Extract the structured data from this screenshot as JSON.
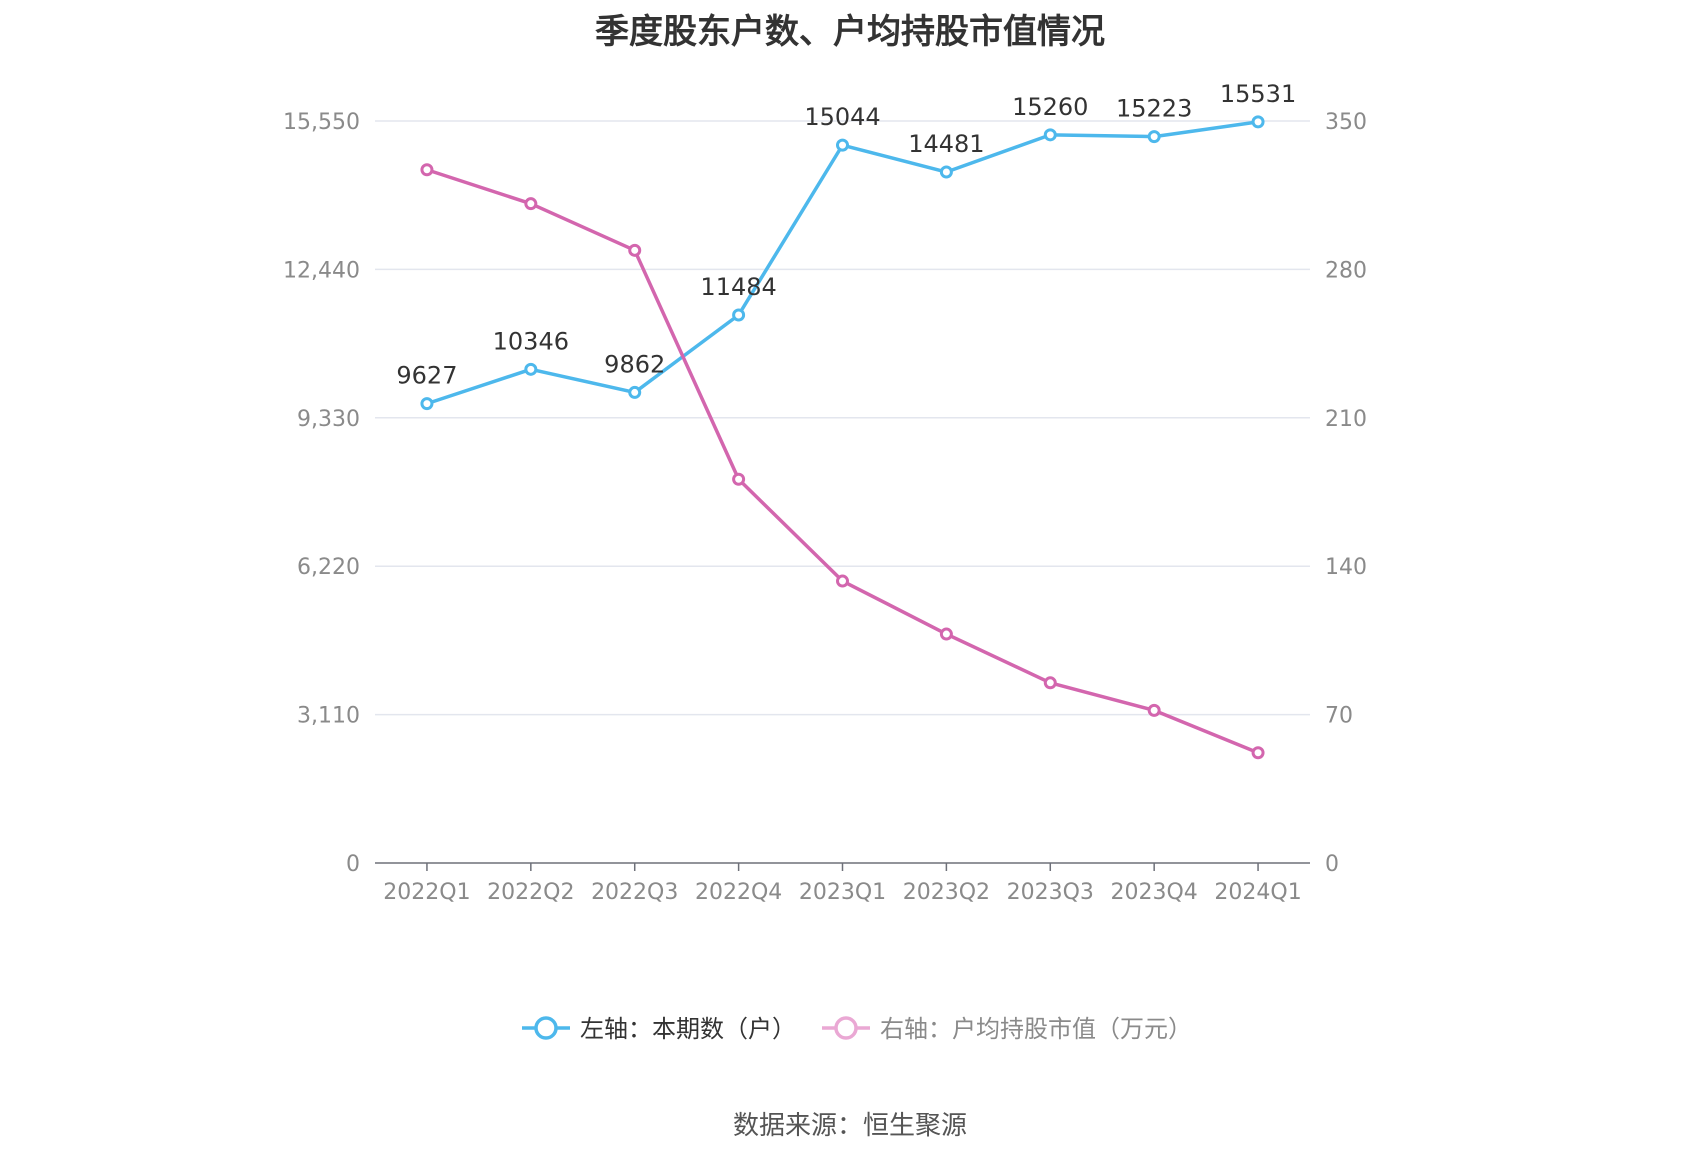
{
  "chart_data": {
    "type": "line",
    "title": "季度股东户数、户均持股市值情况",
    "categories": [
      "2022Q1",
      "2022Q2",
      "2022Q3",
      "2022Q4",
      "2023Q1",
      "2023Q2",
      "2023Q3",
      "2023Q4",
      "2024Q1"
    ],
    "series": [
      {
        "name": "左轴：本期数（户）",
        "axis": "left",
        "color": "#4db8ec",
        "values": [
          9627,
          10346,
          9862,
          11484,
          15044,
          14481,
          15260,
          15223,
          15531
        ],
        "labels": [
          "9627",
          "10346",
          "9862",
          "11484",
          "15044",
          "14481",
          "15260",
          "15223",
          "15531"
        ]
      },
      {
        "name": "右轴：户均持股市值（万元）",
        "axis": "right",
        "color": "#d366ae",
        "legend_color": "#eaa8d4",
        "values": [
          327,
          311,
          289,
          181,
          133,
          108,
          85,
          72,
          52
        ]
      }
    ],
    "y_left": {
      "min": 0,
      "max": 15550,
      "ticks": [
        0,
        3110,
        6220,
        9330,
        12440,
        15550
      ],
      "tick_labels": [
        "0",
        "3,110",
        "6,220",
        "9,330",
        "12,440",
        "15,550"
      ]
    },
    "y_right": {
      "min": 0,
      "max": 350,
      "ticks": [
        0,
        70,
        140,
        210,
        280,
        350
      ],
      "tick_labels": [
        "0",
        "70",
        "140",
        "210",
        "280",
        "350"
      ]
    },
    "grid": true,
    "legend_position": "bottom"
  },
  "source": "数据来源：恒生聚源",
  "colors": {
    "grid": "#e3e6ee",
    "axis": "#6e7079",
    "tick": "#8a8a8a"
  }
}
